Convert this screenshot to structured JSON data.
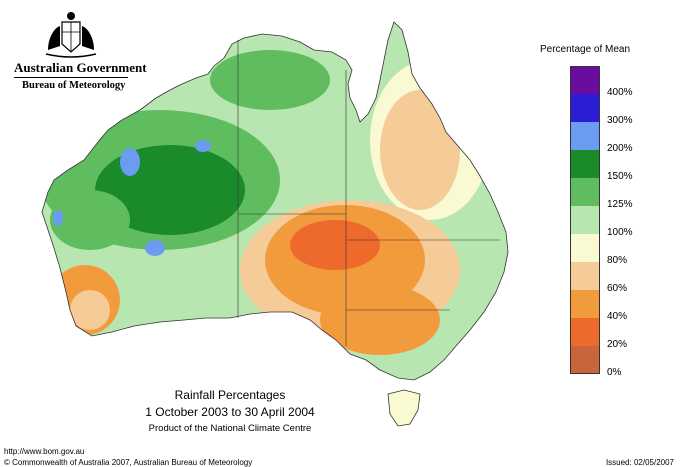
{
  "header": {
    "org_line1": "Australian Government",
    "org_line2": "Bureau of Meteorology"
  },
  "legend": {
    "title": "Percentage of Mean",
    "classes": [
      {
        "label": "400%",
        "color": "#6a0d9e"
      },
      {
        "label": "300%",
        "color": "#2b1dd6"
      },
      {
        "label": "200%",
        "color": "#6c9bf2"
      },
      {
        "label": "150%",
        "color": "#1a8a2a"
      },
      {
        "label": "125%",
        "color": "#5fbd5f"
      },
      {
        "label": "100%",
        "color": "#b8e6b0"
      },
      {
        "label": "80%",
        "color": "#fafad2"
      },
      {
        "label": "60%",
        "color": "#f5cc97"
      },
      {
        "label": "40%",
        "color": "#f29b3c"
      },
      {
        "label": "20%",
        "color": "#ee6a2c"
      },
      {
        "label": "0%",
        "color": "#c9653a"
      }
    ]
  },
  "caption": {
    "title": "Rainfall Percentages",
    "period": "1 October 2003 to 30 April 2004",
    "product": "Product of the National Climate Centre"
  },
  "footer": {
    "url": "http://www.bom.gov.au",
    "copyright": "© Commonwealth of Australia 2007, Australian Bureau of Meteorology",
    "issued": "Issued: 02/05/2007"
  }
}
